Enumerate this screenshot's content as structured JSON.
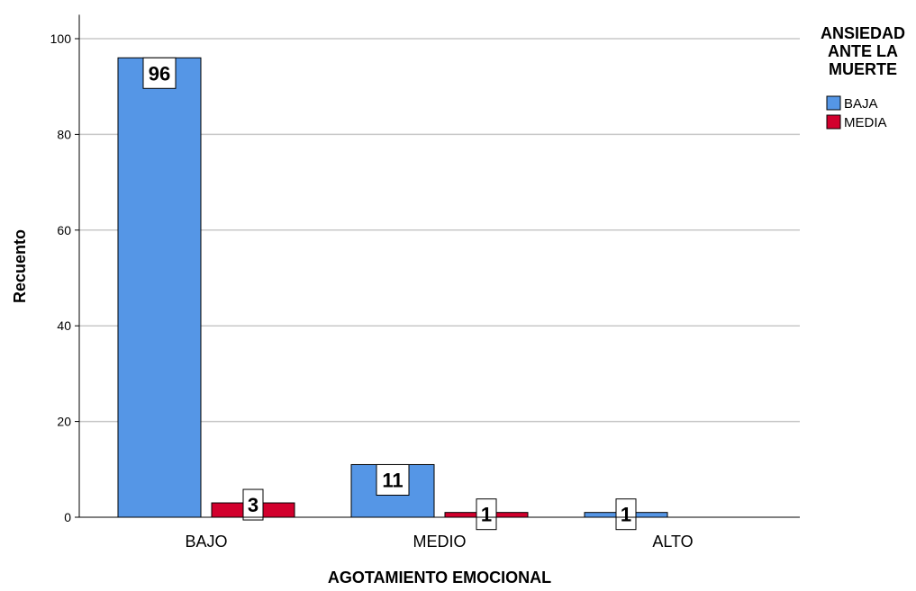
{
  "chart_data": {
    "type": "bar",
    "title": "",
    "xlabel": "AGOTAMIENTO EMOCIONAL",
    "ylabel": "Recuento",
    "categories": [
      "BAJO",
      "MEDIO",
      "ALTO"
    ],
    "series": [
      {
        "name": "BAJA",
        "values": [
          96,
          11,
          1
        ],
        "color": "#5596e6"
      },
      {
        "name": "MEDIA",
        "values": [
          3,
          1,
          null
        ],
        "color": "#d2002d"
      }
    ],
    "ylim": [
      0,
      105
    ],
    "yticks": [
      0,
      20,
      40,
      60,
      80,
      100
    ],
    "grid": true,
    "legend": {
      "title": "ANSIEDAD ANTE LA MUERTE",
      "title_lines": [
        "ANSIEDAD",
        "ANTE LA",
        "MUERTE"
      ],
      "placement": "top-right"
    }
  }
}
